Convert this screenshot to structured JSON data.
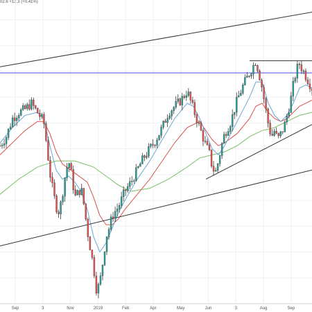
{
  "header": {
    "quote_text": "02.6 +12.3 (+0.41%)"
  },
  "chart_data": {
    "type": "candlestick",
    "x_tick_labels": [
      "Sep",
      "3",
      "Nov",
      "2019",
      "Feb",
      "Apr",
      "May",
      "Jun",
      "3",
      "Aug",
      "Sep"
    ],
    "ylim": [
      0,
      100
    ],
    "grid": true,
    "colors": {
      "up": "#26a69a",
      "down": "#ef5350",
      "candle": "#3c3c3c",
      "ema_fast": "#6aa7d8",
      "ema_slow": "#d9534f",
      "sma_long": "#7cbf6b",
      "horizontal_line": "#4a4af0",
      "trendline": "#333333"
    },
    "indicators": [
      "EMA fast",
      "EMA slow",
      "SMA long"
    ],
    "drawings": [
      {
        "kind": "channel-upper",
        "from": [
          0,
          78
        ],
        "to": [
          100,
          96
        ]
      },
      {
        "kind": "channel-lower",
        "from": [
          0,
          19
        ],
        "to": [
          100,
          44
        ]
      },
      {
        "kind": "horizontal",
        "value": 76
      },
      {
        "kind": "trendline",
        "from": [
          66,
          41
        ],
        "to": [
          100,
          59
        ]
      },
      {
        "kind": "resistance",
        "from": [
          80,
          80
        ],
        "to": [
          100,
          80
        ]
      }
    ],
    "close_path": [
      [
        0,
        52
      ],
      [
        2,
        55
      ],
      [
        4,
        61
      ],
      [
        6,
        63
      ],
      [
        8,
        64
      ],
      [
        10,
        66
      ],
      [
        12,
        63
      ],
      [
        14,
        60
      ],
      [
        15,
        52
      ],
      [
        16,
        43
      ],
      [
        17,
        37
      ],
      [
        18,
        32
      ],
      [
        19,
        30
      ],
      [
        20,
        36
      ],
      [
        21,
        43
      ],
      [
        22,
        47
      ],
      [
        23,
        42
      ],
      [
        24,
        35
      ],
      [
        26,
        38
      ],
      [
        27,
        32
      ],
      [
        28,
        24
      ],
      [
        29,
        18
      ],
      [
        30,
        12
      ],
      [
        31,
        4
      ],
      [
        32,
        7
      ],
      [
        33,
        14
      ],
      [
        34,
        22
      ],
      [
        35,
        25
      ],
      [
        36,
        29
      ],
      [
        38,
        32
      ],
      [
        40,
        37
      ],
      [
        42,
        40
      ],
      [
        44,
        44
      ],
      [
        46,
        48
      ],
      [
        48,
        51
      ],
      [
        50,
        54
      ],
      [
        52,
        58
      ],
      [
        54,
        63
      ],
      [
        56,
        65
      ],
      [
        58,
        67
      ],
      [
        60,
        70
      ],
      [
        62,
        64
      ],
      [
        64,
        58
      ],
      [
        65,
        55
      ],
      [
        66,
        52
      ],
      [
        67,
        50
      ],
      [
        68,
        45
      ],
      [
        69,
        43
      ],
      [
        70,
        47
      ],
      [
        71,
        52
      ],
      [
        72,
        56
      ],
      [
        74,
        60
      ],
      [
        76,
        67
      ],
      [
        78,
        72
      ],
      [
        80,
        76
      ],
      [
        82,
        80
      ],
      [
        83,
        76
      ],
      [
        84,
        71
      ],
      [
        85,
        65
      ],
      [
        86,
        59
      ],
      [
        87,
        55
      ],
      [
        88,
        57
      ],
      [
        89,
        54
      ],
      [
        90,
        56
      ],
      [
        91,
        58
      ],
      [
        92,
        62
      ],
      [
        93,
        66
      ],
      [
        94,
        72
      ],
      [
        95,
        77
      ],
      [
        96,
        79
      ],
      [
        97,
        77
      ],
      [
        98,
        75
      ],
      [
        100,
        71
      ]
    ],
    "ema_fast_path": [
      [
        0,
        53
      ],
      [
        4,
        58
      ],
      [
        8,
        62
      ],
      [
        12,
        63
      ],
      [
        14,
        61
      ],
      [
        16,
        52
      ],
      [
        18,
        44
      ],
      [
        20,
        41
      ],
      [
        22,
        42
      ],
      [
        24,
        40
      ],
      [
        26,
        37
      ],
      [
        28,
        31
      ],
      [
        30,
        22
      ],
      [
        32,
        17
      ],
      [
        34,
        20
      ],
      [
        36,
        25
      ],
      [
        38,
        30
      ],
      [
        40,
        34
      ],
      [
        44,
        41
      ],
      [
        48,
        47
      ],
      [
        52,
        54
      ],
      [
        56,
        61
      ],
      [
        60,
        66
      ],
      [
        62,
        65
      ],
      [
        64,
        61
      ],
      [
        66,
        56
      ],
      [
        68,
        51
      ],
      [
        70,
        49
      ],
      [
        72,
        52
      ],
      [
        76,
        60
      ],
      [
        80,
        68
      ],
      [
        82,
        73
      ],
      [
        84,
        73
      ],
      [
        86,
        66
      ],
      [
        88,
        62
      ],
      [
        90,
        60
      ],
      [
        92,
        62
      ],
      [
        94,
        66
      ],
      [
        96,
        71
      ],
      [
        98,
        72
      ],
      [
        100,
        71
      ]
    ],
    "ema_slow_path": [
      [
        0,
        49
      ],
      [
        4,
        53
      ],
      [
        8,
        57
      ],
      [
        12,
        60
      ],
      [
        14,
        60
      ],
      [
        16,
        56
      ],
      [
        18,
        50
      ],
      [
        20,
        46
      ],
      [
        24,
        43
      ],
      [
        28,
        40
      ],
      [
        30,
        35
      ],
      [
        32,
        29
      ],
      [
        34,
        26
      ],
      [
        36,
        26
      ],
      [
        38,
        28
      ],
      [
        40,
        31
      ],
      [
        44,
        36
      ],
      [
        48,
        41
      ],
      [
        52,
        47
      ],
      [
        56,
        53
      ],
      [
        60,
        58
      ],
      [
        64,
        60
      ],
      [
        66,
        57
      ],
      [
        68,
        54
      ],
      [
        70,
        52
      ],
      [
        72,
        53
      ],
      [
        76,
        56
      ],
      [
        80,
        61
      ],
      [
        82,
        65
      ],
      [
        84,
        66
      ],
      [
        86,
        63
      ],
      [
        88,
        61
      ],
      [
        90,
        60
      ],
      [
        92,
        61
      ],
      [
        96,
        65
      ],
      [
        100,
        67
      ]
    ],
    "sma_long_path": [
      [
        0,
        36
      ],
      [
        6,
        41
      ],
      [
        12,
        45
      ],
      [
        18,
        47
      ],
      [
        24,
        47
      ],
      [
        30,
        45
      ],
      [
        34,
        42
      ],
      [
        38,
        39
      ],
      [
        42,
        37
      ],
      [
        48,
        38
      ],
      [
        54,
        41
      ],
      [
        60,
        45
      ],
      [
        64,
        48
      ],
      [
        68,
        49
      ],
      [
        72,
        50
      ],
      [
        76,
        52
      ],
      [
        80,
        55
      ],
      [
        84,
        57
      ],
      [
        88,
        58
      ],
      [
        92,
        60
      ],
      [
        96,
        62
      ],
      [
        100,
        63
      ]
    ]
  }
}
